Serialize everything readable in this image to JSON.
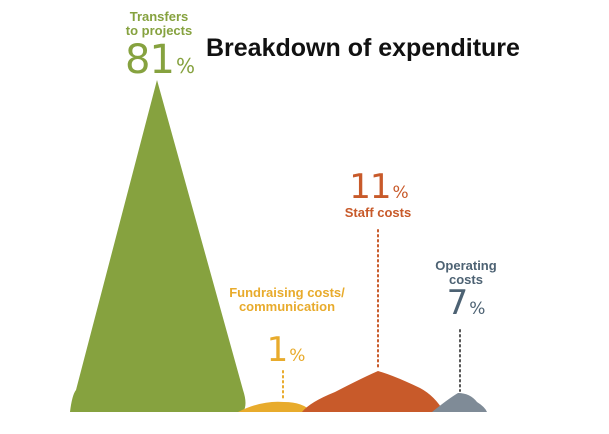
{
  "title": "Breakdown of expenditure",
  "chart_data": {
    "type": "area",
    "title": "Breakdown of expenditure",
    "unit": "%",
    "series": [
      {
        "name": "Transfers to projects",
        "value": 81,
        "color": "#86a23f"
      },
      {
        "name": "Fundraising costs/ communication",
        "value": 1,
        "color": "#e8ab2c"
      },
      {
        "name": "Staff costs",
        "value": 11,
        "color": "#c85a2a"
      },
      {
        "name": "Operating costs",
        "value": 7,
        "color": "#7f8b97"
      }
    ]
  }
}
